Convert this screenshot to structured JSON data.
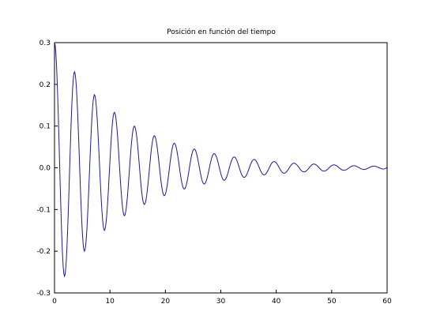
{
  "chart_data": {
    "type": "line",
    "title": "Posición en función del tiempo",
    "xlabel": "",
    "ylabel": "",
    "xlim": [
      0,
      60
    ],
    "ylim": [
      -0.3,
      0.3
    ],
    "x_ticks": [
      "0",
      "10",
      "20",
      "30",
      "40",
      "50",
      "60"
    ],
    "y_ticks": [
      "0.3",
      "0.2",
      "0.1",
      "0.0",
      "-0.1",
      "-0.2",
      "-0.3"
    ],
    "grid": false,
    "legend": "none",
    "line_color": "#1a1aa0",
    "series": [
      {
        "description": "damped oscillation, peak extrema read from plot",
        "x": [
          0,
          1.8,
          3.6,
          5.4,
          7.2,
          9.0,
          10.8,
          12.6,
          14.4,
          16.2,
          18.0,
          19.8,
          21.6,
          23.4,
          25.2,
          27.0,
          28.8,
          30.6,
          32.4,
          34.2,
          36.0,
          37.8,
          39.6,
          41.4,
          43.2,
          45.0,
          46.8,
          48.6,
          50.4,
          52.2,
          54.0,
          55.8,
          57.6,
          59.4,
          60
        ],
        "y": [
          0.3,
          -0.26,
          0.23,
          -0.2,
          0.175,
          -0.15,
          0.133,
          -0.115,
          0.1,
          -0.088,
          0.077,
          -0.067,
          0.059,
          -0.051,
          0.045,
          -0.039,
          0.034,
          -0.03,
          0.026,
          -0.023,
          0.02,
          -0.017,
          0.015,
          -0.013,
          0.011,
          -0.01,
          0.009,
          -0.008,
          0.007,
          -0.006,
          0.005,
          -0.004,
          0.004,
          -0.003,
          0.0
        ]
      }
    ]
  }
}
